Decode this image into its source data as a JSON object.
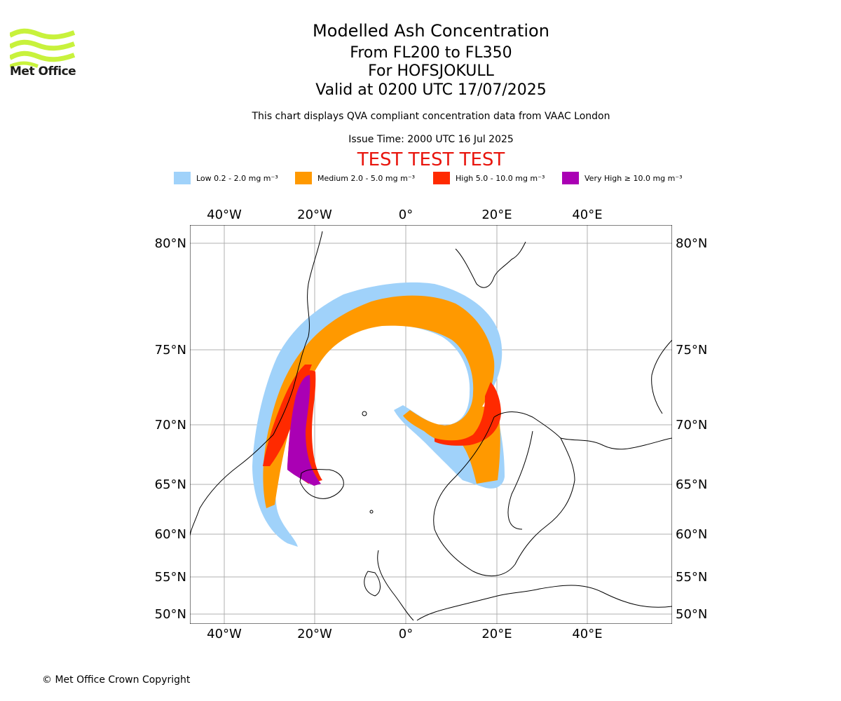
{
  "header": {
    "title": "Modelled Ash Concentration",
    "levels": "From FL200 to FL350",
    "volcano": "For HOFSJOKULL",
    "valid": "Valid at 0200 UTC 17/07/2025",
    "description": "This chart displays QVA compliant concentration data from VAAC London",
    "issue_time": "Issue Time: 2000 UTC 16 Jul 2025",
    "test_banner": "TEST TEST TEST"
  },
  "logo": {
    "text": "Met Office",
    "color": "#c8f23c"
  },
  "legend": [
    {
      "label": "Low 0.2 - 2.0 mg m⁻³",
      "color": "#a0d2fa"
    },
    {
      "label": "Medium 2.0 - 5.0 mg m⁻³",
      "color": "#ff9900"
    },
    {
      "label": "High 5.0 - 10.0 mg m⁻³",
      "color": "#ff2a00"
    },
    {
      "label": "Very High ≥ 10.0 mg m⁻³",
      "color": "#aa00b4"
    }
  ],
  "map": {
    "longitude_ticks": [
      "40°W",
      "20°W",
      "0°",
      "20°E",
      "40°E"
    ],
    "latitude_ticks": [
      "80°N",
      "75°N",
      "70°N",
      "65°N",
      "60°N",
      "55°N",
      "50°N"
    ],
    "grid_color": "#b0b0b0"
  },
  "footer": {
    "copyright": "© Met Office Crown Copyright"
  }
}
